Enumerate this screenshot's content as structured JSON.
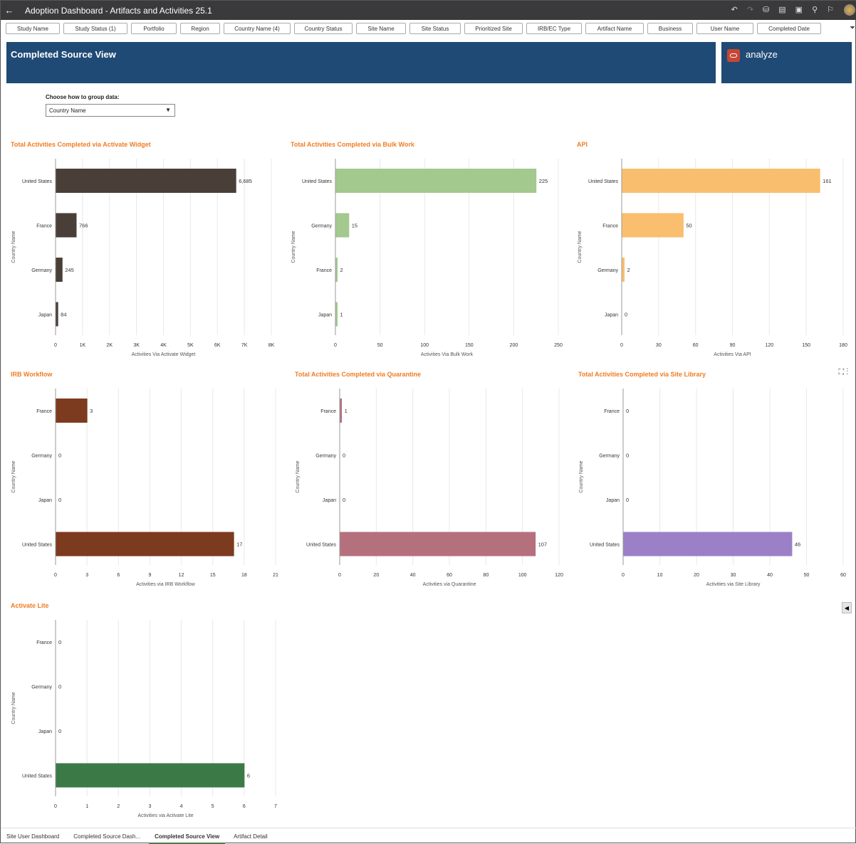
{
  "header": {
    "title": "Adoption Dashboard - Artifacts and Activities 25.1",
    "icons": [
      "undo-icon",
      "redo-icon",
      "data-icon",
      "comment-icon",
      "present-icon",
      "share-icon",
      "bookmark-icon"
    ]
  },
  "filters": [
    "Study Name",
    "Study Status (1)",
    "Portfolio",
    "Region",
    "Country Name (4)",
    "Country Status",
    "Site Name",
    "Site Status",
    "Prioritized Site",
    "IRB/EC Type",
    "Artifact Name",
    "Business",
    "User Name",
    "Completed Date"
  ],
  "banner": {
    "title": "Completed Source View",
    "analyze": "analyze"
  },
  "grouping": {
    "label": "Choose how to group data:",
    "value": "Country Name"
  },
  "chart_data": [
    {
      "type": "bar",
      "orientation": "horizontal",
      "title": "Total Activities Completed via Activate Widget",
      "ylabel": "Country Name",
      "xlabel": "Activities Via Activate Widget",
      "categories": [
        "United States",
        "France",
        "Germany",
        "Japan"
      ],
      "values": [
        6685,
        766,
        245,
        84
      ],
      "data_labels": [
        "6,685",
        "766",
        "245",
        "84"
      ],
      "xlim": [
        0,
        8000
      ],
      "ticks": [
        "0",
        "1K",
        "2K",
        "3K",
        "4K",
        "5K",
        "6K",
        "7K",
        "8K"
      ],
      "color": "#4a3f38"
    },
    {
      "type": "bar",
      "orientation": "horizontal",
      "title": "Total Activities Completed via Bulk Work",
      "ylabel": "Country Name",
      "xlabel": "Activities Via Bulk Work",
      "categories": [
        "United States",
        "Germany",
        "France",
        "Japan"
      ],
      "values": [
        225,
        15,
        2,
        1
      ],
      "data_labels": [
        "225",
        "15",
        "2",
        "1"
      ],
      "xlim": [
        0,
        250
      ],
      "ticks": [
        "0",
        "50",
        "100",
        "150",
        "200",
        "250"
      ],
      "color": "#a3c98e"
    },
    {
      "type": "bar",
      "orientation": "horizontal",
      "title": "API",
      "ylabel": "Country Name",
      "xlabel": "Activities Via API",
      "categories": [
        "United States",
        "France",
        "Germany",
        "Japan"
      ],
      "values": [
        161,
        50,
        2,
        0
      ],
      "data_labels": [
        "161",
        "50",
        "2",
        "0"
      ],
      "xlim": [
        0,
        180
      ],
      "ticks": [
        "0",
        "30",
        "60",
        "90",
        "120",
        "150",
        "180"
      ],
      "color": "#f9be6e"
    },
    {
      "type": "bar",
      "orientation": "horizontal",
      "title": "IRB Workflow",
      "ylabel": "Country Name",
      "xlabel": "Activities via IRB Workflow",
      "categories": [
        "France",
        "Germany",
        "Japan",
        "United States"
      ],
      "values": [
        3,
        0,
        0,
        17
      ],
      "data_labels": [
        "3",
        "0",
        "0",
        "17"
      ],
      "xlim": [
        0,
        21
      ],
      "ticks": [
        "0",
        "3",
        "6",
        "9",
        "12",
        "15",
        "18",
        "21"
      ],
      "color": "#7c3a1e"
    },
    {
      "type": "bar",
      "orientation": "horizontal",
      "title": "Total Activities Completed via Quarantine",
      "ylabel": "Country Name",
      "xlabel": "Activities via Quarantine",
      "categories": [
        "France",
        "Germany",
        "Japan",
        "United States"
      ],
      "values": [
        1,
        0,
        0,
        107
      ],
      "data_labels": [
        "1",
        "0",
        "0",
        "107"
      ],
      "xlim": [
        0,
        120
      ],
      "ticks": [
        "0",
        "20",
        "40",
        "60",
        "80",
        "100",
        "120"
      ],
      "color": "#b5707e"
    },
    {
      "type": "bar",
      "orientation": "horizontal",
      "title": "Total Activities Completed via Site Library",
      "ylabel": "Country Name",
      "xlabel": "Activities via Site Library",
      "categories": [
        "France",
        "Germany",
        "Japan",
        "United States"
      ],
      "values": [
        0,
        0,
        0,
        46
      ],
      "data_labels": [
        "0",
        "0",
        "0",
        "46"
      ],
      "xlim": [
        0,
        60
      ],
      "ticks": [
        "0",
        "10",
        "20",
        "30",
        "40",
        "50",
        "60"
      ],
      "color": "#9b80c8"
    },
    {
      "type": "bar",
      "orientation": "horizontal",
      "title": "Activate Lite",
      "ylabel": "Country Name",
      "xlabel": "Activities via Activate Lite",
      "categories": [
        "France",
        "Germany",
        "Japan",
        "United States"
      ],
      "values": [
        0,
        0,
        0,
        6
      ],
      "data_labels": [
        "0",
        "0",
        "0",
        "6"
      ],
      "xlim": [
        0,
        7
      ],
      "ticks": [
        "0",
        "1",
        "2",
        "3",
        "4",
        "5",
        "6",
        "7"
      ],
      "color": "#3b7a47"
    }
  ],
  "tabs": [
    {
      "label": "Site User Dashboard"
    },
    {
      "label": "Completed Source Dash..."
    },
    {
      "label": "Completed Source View",
      "active": true
    },
    {
      "label": "Artifact Detail"
    }
  ]
}
